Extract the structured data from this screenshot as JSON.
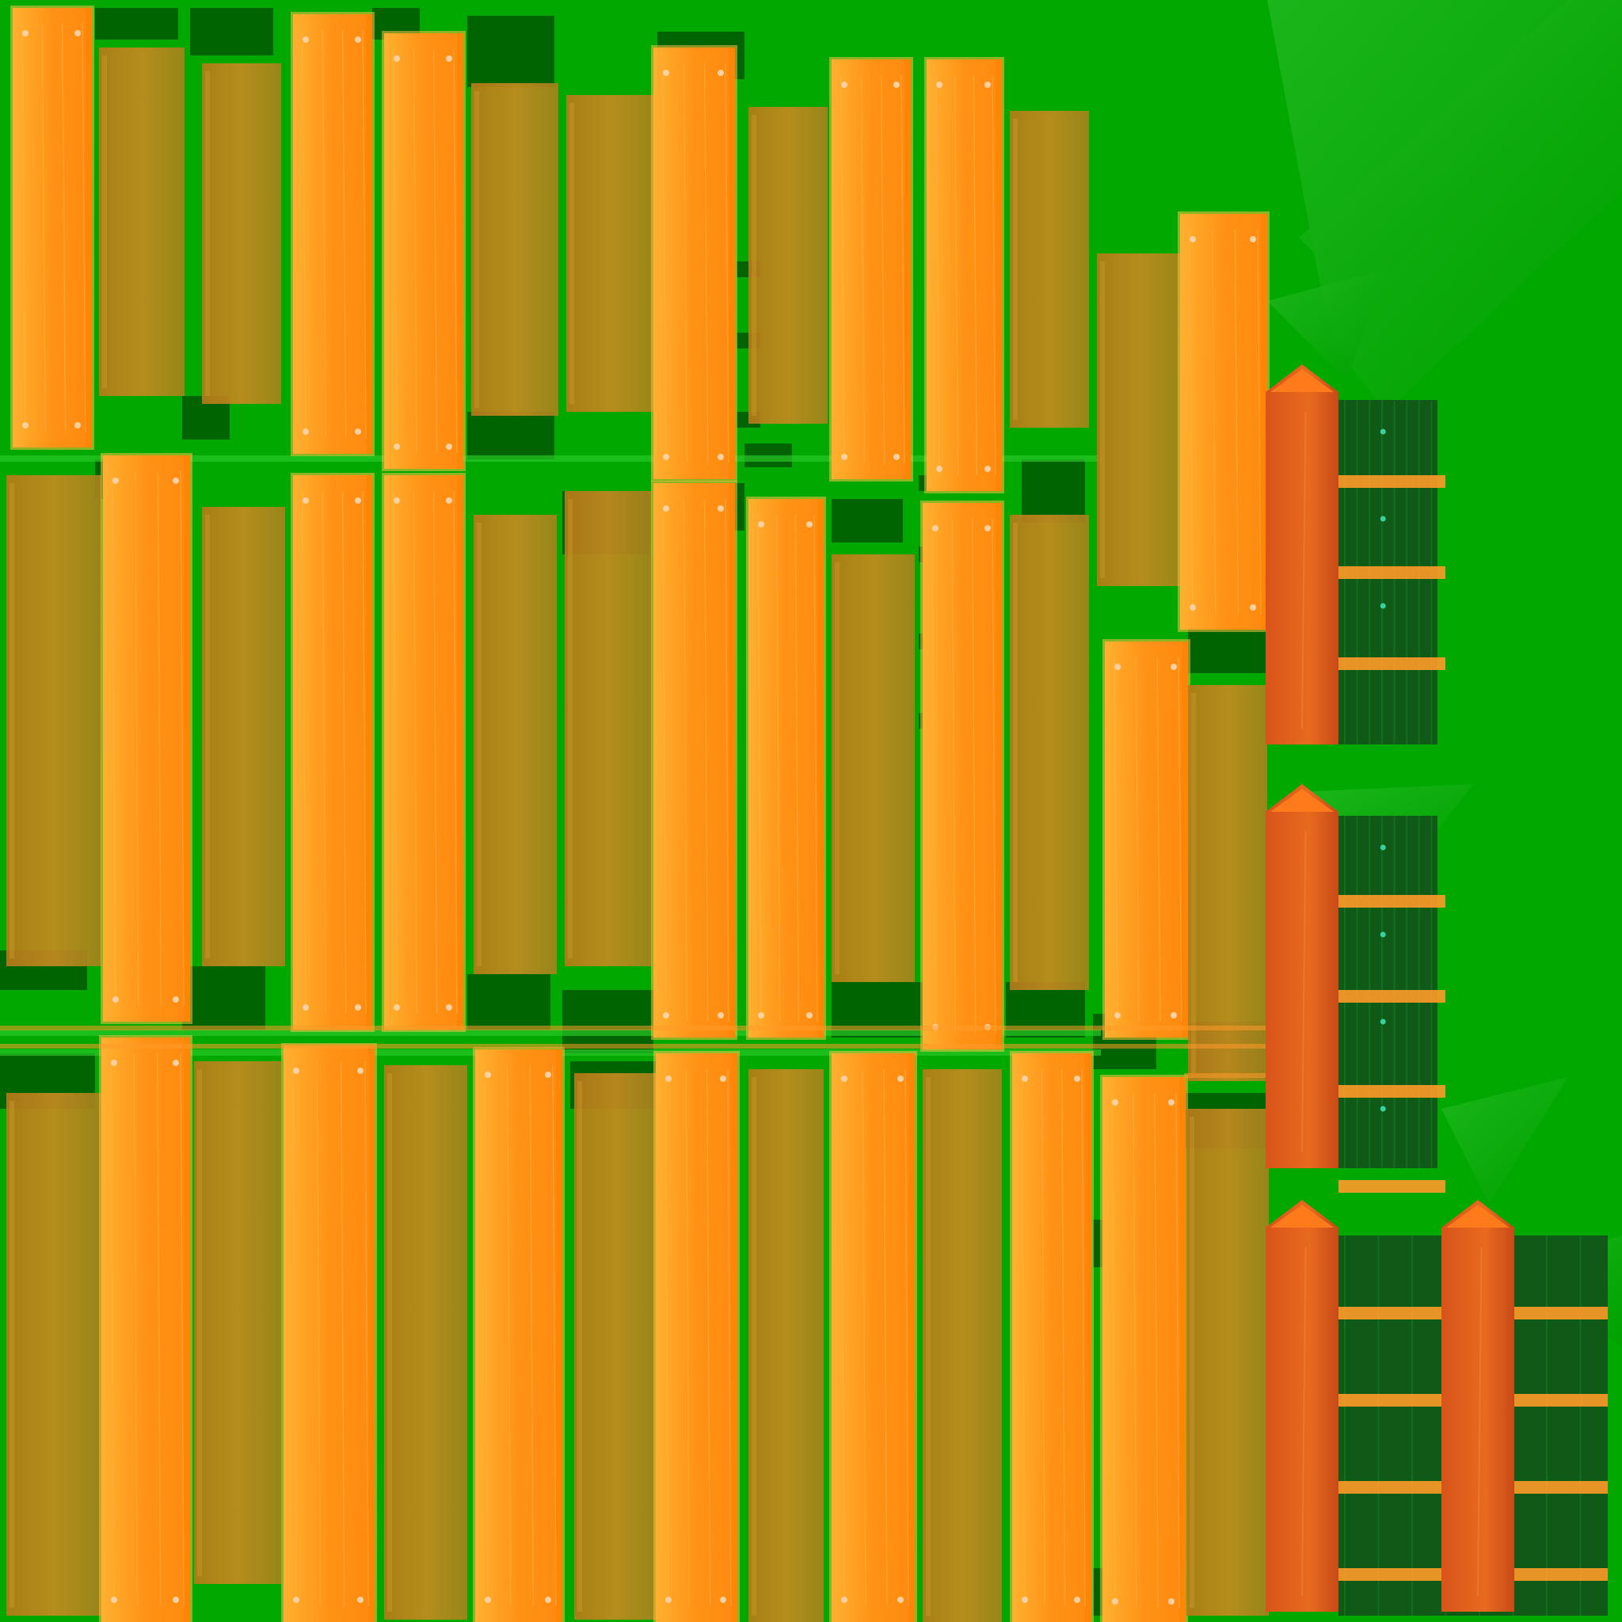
{
  "texture": {
    "kind": "wooden-fence-texture-atlas",
    "has_text": false
  },
  "colors": {
    "background": "#00a800",
    "background_dark": "#007a00",
    "gap_dark": "#006400",
    "board_bright": "#ff9a1c",
    "board_bright_edge": "#ffc040",
    "board_mid": "#ff8c10",
    "board_shadow": "#c07a18",
    "board_shadow_alt": "#a88420",
    "rail": "#ff9a28",
    "post": "#e0561c",
    "post_cap": "#ff7a1a",
    "dark_panel": "#0e5a16",
    "dark_panel_line": "#1a7a24",
    "nail": "#ffd0a0",
    "panel_dot": "#3ad0a0"
  },
  "icons": {
    "board": "vertical-plank-icon",
    "post": "pointed-fence-post-icon",
    "rail": "horizontal-rail-icon",
    "leaf": "triangular-leaf-shape"
  }
}
